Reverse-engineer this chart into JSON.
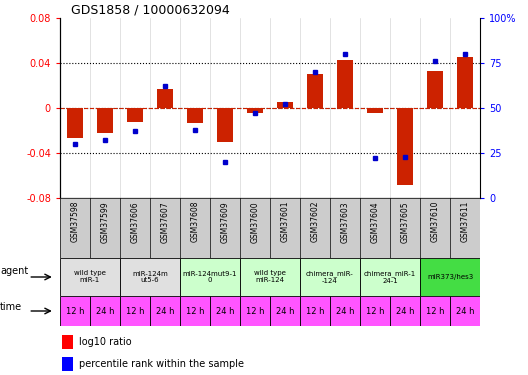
{
  "title": "GDS1858 / 10000632094",
  "samples": [
    "GSM37598",
    "GSM37599",
    "GSM37606",
    "GSM37607",
    "GSM37608",
    "GSM37609",
    "GSM37600",
    "GSM37601",
    "GSM37602",
    "GSM37603",
    "GSM37604",
    "GSM37605",
    "GSM37610",
    "GSM37611"
  ],
  "log10_ratio": [
    -0.027,
    -0.022,
    -0.012,
    0.017,
    -0.013,
    -0.03,
    -0.004,
    0.005,
    0.03,
    0.043,
    -0.004,
    -0.068,
    0.033,
    0.045
  ],
  "percentile_rank": [
    30,
    32,
    37,
    62,
    38,
    20,
    47,
    52,
    70,
    80,
    22,
    23,
    76,
    80
  ],
  "ylim_left": [
    -0.08,
    0.08
  ],
  "ylim_right": [
    0,
    100
  ],
  "yticks_left": [
    -0.08,
    -0.04,
    0,
    0.04,
    0.08
  ],
  "yticks_right": [
    0,
    25,
    50,
    75,
    100
  ],
  "agent_groups": [
    {
      "label": "wild type\nmiR-1",
      "start": 0,
      "end": 2,
      "color": "#e0e0e0"
    },
    {
      "label": "miR-124m\nut5-6",
      "start": 2,
      "end": 4,
      "color": "#e0e0e0"
    },
    {
      "label": "miR-124mut9-1\n0",
      "start": 4,
      "end": 6,
      "color": "#ccffcc"
    },
    {
      "label": "wild type\nmiR-124",
      "start": 6,
      "end": 8,
      "color": "#ccffcc"
    },
    {
      "label": "chimera_miR-\n-124",
      "start": 8,
      "end": 10,
      "color": "#ccffcc"
    },
    {
      "label": "chimera_miR-1\n24-1",
      "start": 10,
      "end": 12,
      "color": "#ccffcc"
    },
    {
      "label": "miR373/hes3",
      "start": 12,
      "end": 14,
      "color": "#44dd44"
    }
  ],
  "time_labels": [
    "12 h",
    "24 h",
    "12 h",
    "24 h",
    "12 h",
    "24 h",
    "12 h",
    "24 h",
    "12 h",
    "24 h",
    "12 h",
    "24 h",
    "12 h",
    "24 h"
  ],
  "bar_color": "#cc2200",
  "dot_color": "#0000cc",
  "bg_color": "#ffffff",
  "zero_line_color": "#cc2200",
  "time_row_color": "#ff55ff",
  "sample_bg_color": "#cccccc"
}
